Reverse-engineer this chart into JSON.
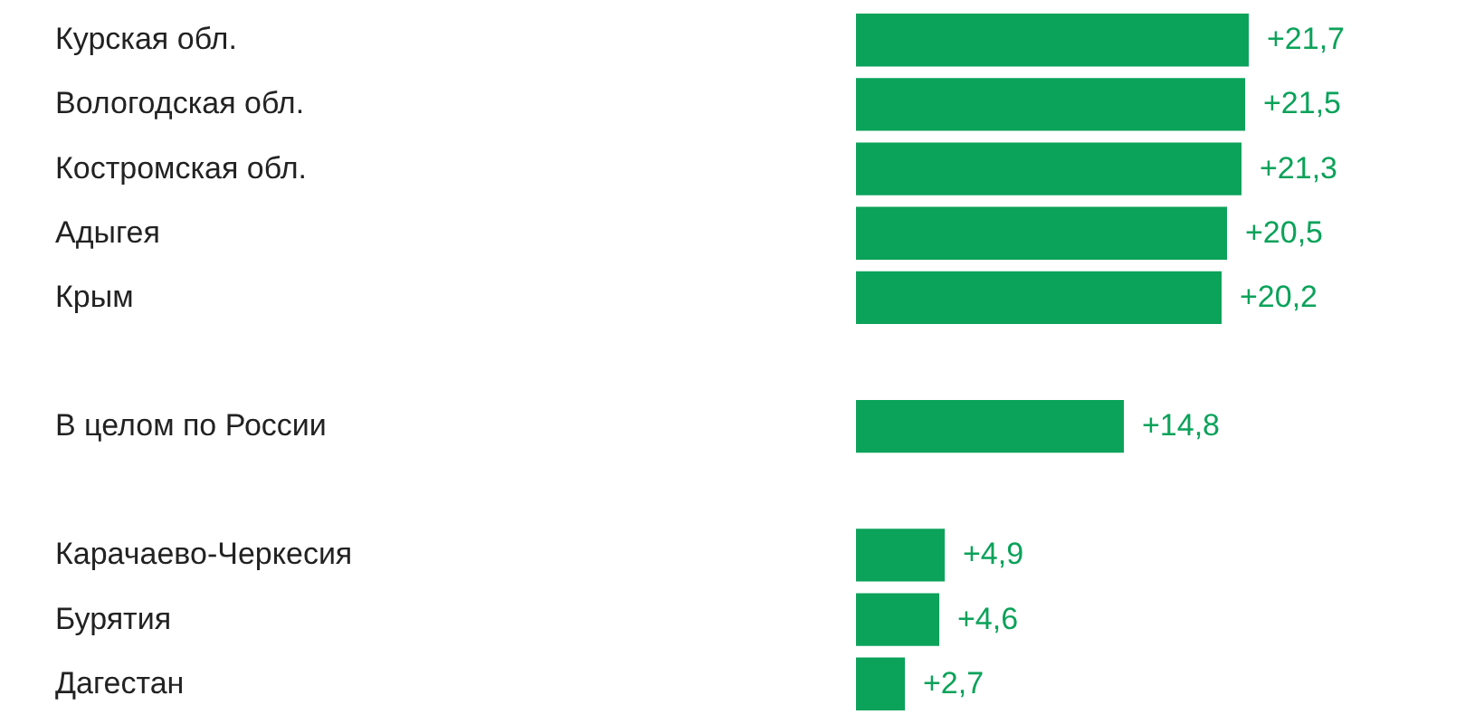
{
  "chart_data": {
    "type": "bar",
    "orientation": "horizontal",
    "categories": [
      "Курская обл.",
      "Вологодская обл.",
      "Костромская обл.",
      "Адыгея",
      "Крым",
      null,
      "В целом по России",
      null,
      "Карачаево-Черкесия",
      "Бурятия",
      "Дагестан"
    ],
    "values": [
      21.7,
      21.5,
      21.3,
      20.5,
      20.2,
      null,
      14.8,
      null,
      4.9,
      4.6,
      2.7
    ],
    "value_labels": [
      "+21,7",
      "+21,5",
      "+21,3",
      "+20,5",
      "+20,2",
      null,
      "+14,8",
      null,
      "+4,9",
      "+4,6",
      "+2,7"
    ],
    "color": "#0ba25a"
  }
}
